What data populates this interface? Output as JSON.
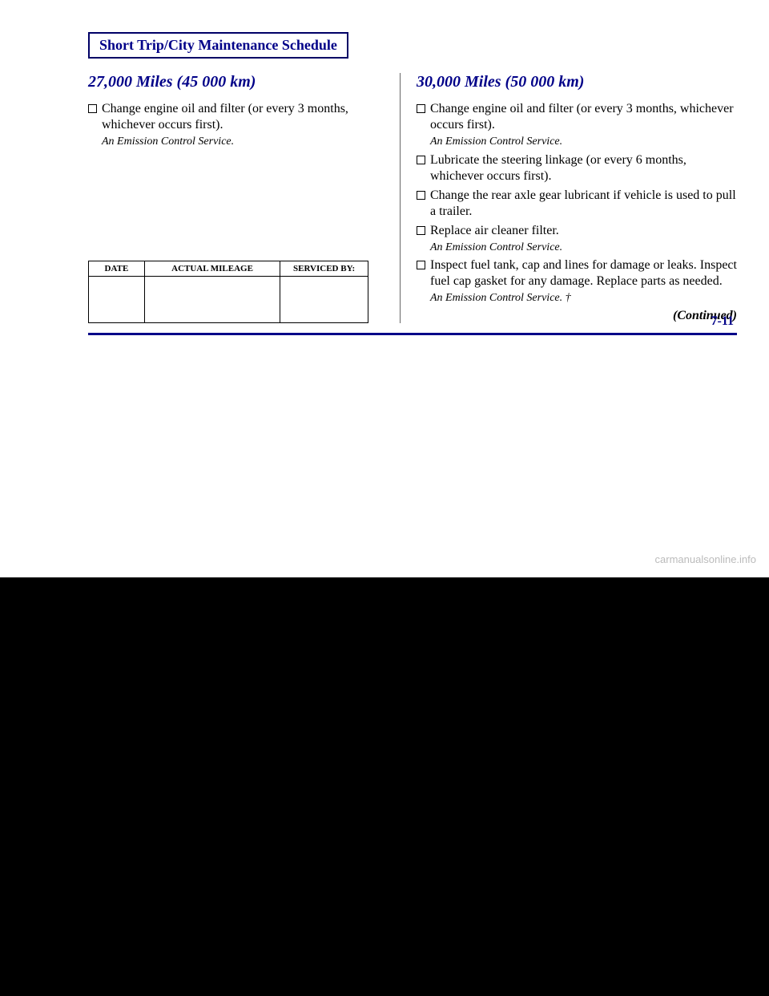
{
  "title": "Short Trip/City Maintenance Schedule",
  "left": {
    "heading": "27,000 Miles (45 000 km)",
    "items": [
      {
        "text": "Change engine oil and filter (or every 3 months, whichever occurs first).",
        "note": "An Emission Control Service."
      }
    ],
    "table": {
      "cols": [
        "DATE",
        "ACTUAL MILEAGE",
        "SERVICED BY:"
      ]
    }
  },
  "right": {
    "heading": "30,000 Miles (50 000 km)",
    "items": [
      {
        "text": "Change engine oil and filter (or every 3 months, whichever occurs first).",
        "note": "An Emission Control Service."
      },
      {
        "text": "Lubricate the steering linkage (or every 6 months, whichever occurs first).",
        "note": null
      },
      {
        "text": "Change the rear axle gear lubricant if vehicle is used to pull a trailer.",
        "note": null
      },
      {
        "text": "Replace air cleaner filter.",
        "note": "An Emission Control Service."
      },
      {
        "text": "Inspect fuel tank, cap and lines for damage or leaks. Inspect fuel cap gasket for any damage. Replace parts as needed.",
        "note": "An Emission Control Service. †"
      }
    ],
    "continued": "(Continued)"
  },
  "pageNumber": "7-11",
  "watermark": "carmanualsonline.info",
  "colors": {
    "accent": "#000088",
    "border": "#000066",
    "text": "#000000",
    "background": "#ffffff"
  }
}
